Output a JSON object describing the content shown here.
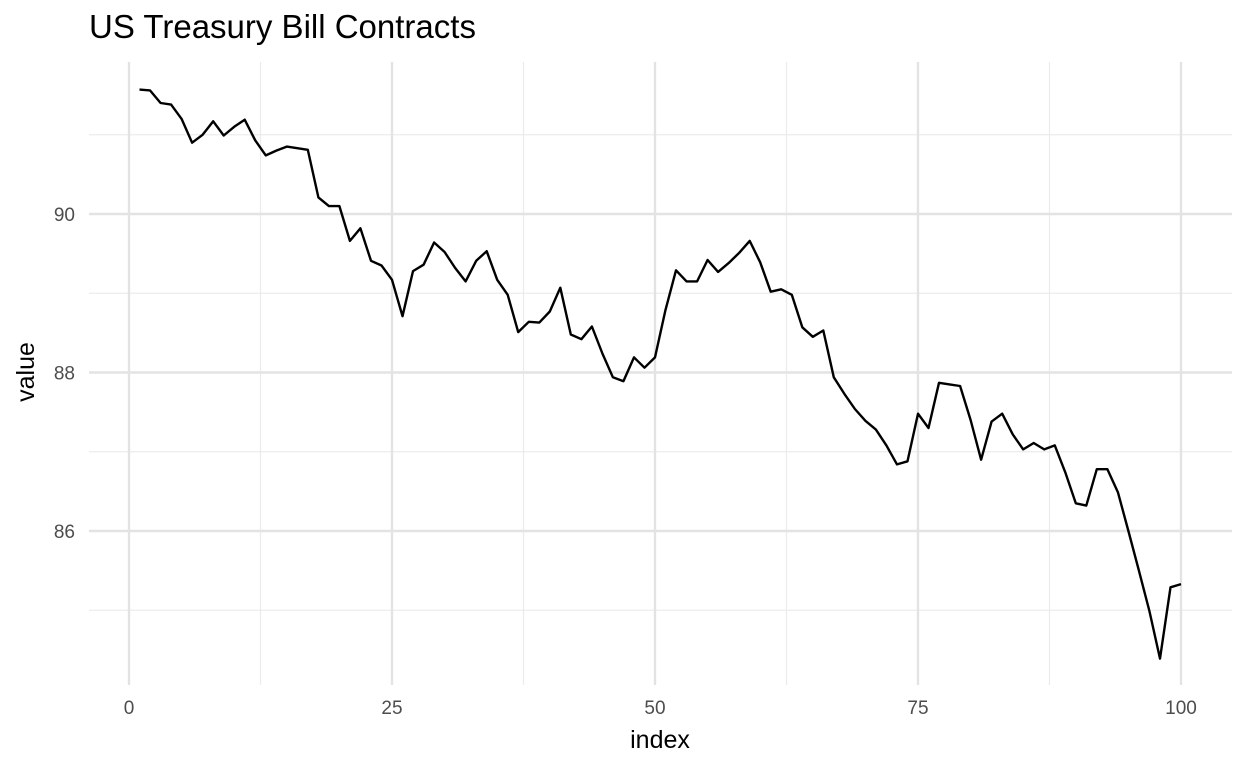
{
  "chart_data": {
    "type": "line",
    "title": "US Treasury Bill Contracts",
    "xlabel": "index",
    "ylabel": "value",
    "xlim": [
      0,
      100
    ],
    "ylim": [
      84.3,
      91.7
    ],
    "x_ticks": [
      0,
      25,
      50,
      75,
      100
    ],
    "y_ticks": [
      86,
      88,
      90
    ],
    "grid": true,
    "line_color": "#000000",
    "series": [
      {
        "x": [
          1,
          2,
          3,
          4,
          5,
          6,
          7,
          8,
          9,
          10,
          11,
          12,
          13,
          14,
          15,
          16,
          17,
          18,
          19,
          20,
          21,
          22,
          23,
          24,
          25,
          26,
          27,
          28,
          29,
          30,
          31,
          32,
          33,
          34,
          35,
          36,
          37,
          38,
          39,
          40,
          41,
          42,
          43,
          44,
          45,
          46,
          47,
          48,
          49,
          50,
          51,
          52,
          53,
          54,
          55,
          56,
          57,
          58,
          59,
          60,
          61,
          62,
          63,
          64,
          65,
          66,
          67,
          68,
          69,
          70,
          71,
          72,
          73,
          74,
          75,
          76,
          77,
          78,
          79,
          80,
          81,
          82,
          83,
          84,
          85,
          86,
          87,
          88,
          89,
          90,
          91,
          92,
          93,
          94,
          95,
          96,
          97,
          98,
          99,
          100
        ],
        "values": [
          91.57,
          91.56,
          91.4,
          91.38,
          91.2,
          90.9,
          91.0,
          91.17,
          90.99,
          91.1,
          91.19,
          90.93,
          90.74,
          90.8,
          90.85,
          90.83,
          90.81,
          90.21,
          90.1,
          90.1,
          89.66,
          89.82,
          89.41,
          89.35,
          89.17,
          88.71,
          89.28,
          89.36,
          89.64,
          89.52,
          89.32,
          89.15,
          89.41,
          89.53,
          89.17,
          88.98,
          88.51,
          88.64,
          88.63,
          88.77,
          89.07,
          88.48,
          88.42,
          88.58,
          88.24,
          87.94,
          87.89,
          88.19,
          88.06,
          88.19,
          88.79,
          89.29,
          89.15,
          89.15,
          89.42,
          89.27,
          89.38,
          89.51,
          89.66,
          89.39,
          89.02,
          89.05,
          88.98,
          88.57,
          88.45,
          88.53,
          87.94,
          87.73,
          87.54,
          87.39,
          87.28,
          87.08,
          86.84,
          86.88,
          87.48,
          87.3,
          87.87,
          87.85,
          87.83,
          87.4,
          86.9,
          87.38,
          87.48,
          87.22,
          87.03,
          87.11,
          87.03,
          87.08,
          86.74,
          86.35,
          86.32,
          86.78,
          86.78,
          86.49,
          86.0,
          85.5,
          84.99,
          84.39,
          85.29,
          85.33
        ]
      }
    ]
  }
}
